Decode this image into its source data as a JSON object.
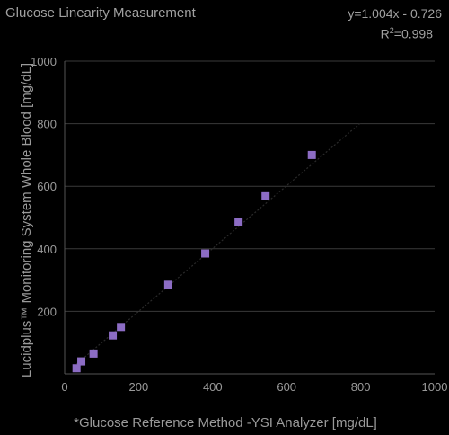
{
  "header": {
    "title": "Glucose Linearity Measurement",
    "equation": "y=1.004x - 0.726",
    "r2_label": "R",
    "r2_sup": "2",
    "r2_value": "=0.998"
  },
  "chart_data": {
    "type": "scatter",
    "title": "Glucose Linearity Measurement",
    "xlabel": "*Glucose Reference Method -YSI Analyzer [mg/dL]",
    "ylabel": "Lucidplus™ Monitoring System Whole Blood [mg/dL]",
    "xlim": [
      0,
      1000
    ],
    "ylim": [
      0,
      1000
    ],
    "xticks": [
      0,
      200,
      400,
      600,
      800,
      1000
    ],
    "yticks": [
      200,
      400,
      600,
      800,
      1000
    ],
    "grid": "horizontal",
    "trendline": {
      "slope": 1.004,
      "intercept": -0.726,
      "x_range": [
        32,
        800
      ]
    },
    "marker_color": "#8c6cc4",
    "points": [
      {
        "x": 32,
        "y": 18
      },
      {
        "x": 45,
        "y": 40
      },
      {
        "x": 78,
        "y": 65
      },
      {
        "x": 130,
        "y": 123
      },
      {
        "x": 152,
        "y": 150
      },
      {
        "x": 280,
        "y": 285
      },
      {
        "x": 380,
        "y": 385
      },
      {
        "x": 470,
        "y": 485
      },
      {
        "x": 543,
        "y": 568
      },
      {
        "x": 668,
        "y": 700
      }
    ]
  }
}
